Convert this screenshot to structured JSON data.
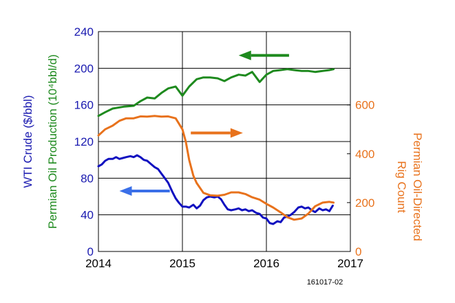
{
  "chart_data": {
    "type": "line",
    "x_range": [
      2014,
      2017
    ],
    "x_ticks": [
      "2014",
      "2015",
      "2016",
      "2017"
    ],
    "left_axis": {
      "range": [
        0,
        240
      ],
      "ticks": [
        "0",
        "40",
        "80",
        "120",
        "160",
        "200",
        "240"
      ],
      "tick_color": "#1a1ab0",
      "labels": [
        {
          "text": "WTI Crude ($/bbl)",
          "color": "#1a1ab0"
        },
        {
          "text": "Permian Oil Production (10⁴bbl/d)",
          "color": "#1e8a1e"
        }
      ]
    },
    "right_axis": {
      "range": [
        0,
        900
      ],
      "ticks": [
        "0",
        "200",
        "400",
        "600"
      ],
      "tick_color": "#e8721c",
      "label_lines": [
        "Permian Oil-Directed",
        "Rig Count"
      ],
      "color": "#e8721c"
    },
    "series": [
      {
        "axis": "left",
        "color": "#1e8a1e",
        "points": [
          [
            2014.0,
            148
          ],
          [
            2014.08,
            152
          ],
          [
            2014.17,
            156
          ],
          [
            2014.3,
            158
          ],
          [
            2014.42,
            159
          ],
          [
            2014.5,
            164
          ],
          [
            2014.58,
            168
          ],
          [
            2014.67,
            167
          ],
          [
            2014.75,
            173
          ],
          [
            2014.83,
            178
          ],
          [
            2014.92,
            180
          ],
          [
            2015.0,
            170
          ],
          [
            2015.08,
            180
          ],
          [
            2015.17,
            188
          ],
          [
            2015.25,
            190
          ],
          [
            2015.33,
            190
          ],
          [
            2015.42,
            189
          ],
          [
            2015.5,
            186
          ],
          [
            2015.58,
            190
          ],
          [
            2015.67,
            193
          ],
          [
            2015.75,
            192
          ],
          [
            2015.83,
            196
          ],
          [
            2015.92,
            185
          ],
          [
            2016.0,
            193
          ],
          [
            2016.08,
            197
          ],
          [
            2016.17,
            198
          ],
          [
            2016.25,
            199
          ],
          [
            2016.33,
            198
          ],
          [
            2016.42,
            197
          ],
          [
            2016.5,
            197
          ],
          [
            2016.58,
            196
          ],
          [
            2016.67,
            197
          ],
          [
            2016.75,
            198
          ],
          [
            2016.8,
            199
          ]
        ]
      },
      {
        "axis": "left",
        "color": "#1010c0",
        "points": [
          [
            2014.0,
            93
          ],
          [
            2014.04,
            95
          ],
          [
            2014.08,
            99
          ],
          [
            2014.12,
            101
          ],
          [
            2014.17,
            101
          ],
          [
            2014.21,
            103
          ],
          [
            2014.25,
            101
          ],
          [
            2014.29,
            102
          ],
          [
            2014.33,
            103
          ],
          [
            2014.38,
            104
          ],
          [
            2014.42,
            103
          ],
          [
            2014.46,
            105
          ],
          [
            2014.5,
            103
          ],
          [
            2014.54,
            100
          ],
          [
            2014.58,
            99
          ],
          [
            2014.63,
            95
          ],
          [
            2014.67,
            92
          ],
          [
            2014.71,
            90
          ],
          [
            2014.75,
            85
          ],
          [
            2014.79,
            80
          ],
          [
            2014.83,
            75
          ],
          [
            2014.88,
            65
          ],
          [
            2014.92,
            58
          ],
          [
            2014.96,
            53
          ],
          [
            2015.0,
            49
          ],
          [
            2015.04,
            49
          ],
          [
            2015.08,
            48
          ],
          [
            2015.13,
            51
          ],
          [
            2015.17,
            47
          ],
          [
            2015.21,
            50
          ],
          [
            2015.25,
            56
          ],
          [
            2015.29,
            59
          ],
          [
            2015.33,
            60
          ],
          [
            2015.38,
            59
          ],
          [
            2015.42,
            60
          ],
          [
            2015.46,
            57
          ],
          [
            2015.5,
            51
          ],
          [
            2015.54,
            46
          ],
          [
            2015.58,
            45
          ],
          [
            2015.63,
            46
          ],
          [
            2015.67,
            47
          ],
          [
            2015.71,
            45
          ],
          [
            2015.75,
            46
          ],
          [
            2015.79,
            44
          ],
          [
            2015.83,
            45
          ],
          [
            2015.88,
            42
          ],
          [
            2015.92,
            41
          ],
          [
            2015.96,
            37
          ],
          [
            2016.0,
            36
          ],
          [
            2016.04,
            31
          ],
          [
            2016.08,
            30
          ],
          [
            2016.13,
            33
          ],
          [
            2016.17,
            32
          ],
          [
            2016.21,
            37
          ],
          [
            2016.25,
            38
          ],
          [
            2016.29,
            40
          ],
          [
            2016.33,
            43
          ],
          [
            2016.38,
            48
          ],
          [
            2016.42,
            49
          ],
          [
            2016.46,
            47
          ],
          [
            2016.5,
            48
          ],
          [
            2016.54,
            45
          ],
          [
            2016.58,
            43
          ],
          [
            2016.63,
            47
          ],
          [
            2016.67,
            45
          ],
          [
            2016.71,
            46
          ],
          [
            2016.75,
            44
          ],
          [
            2016.79,
            50
          ]
        ]
      },
      {
        "axis": "right",
        "color": "#e8721c",
        "points": [
          [
            2014.0,
            475
          ],
          [
            2014.08,
            500
          ],
          [
            2014.17,
            515
          ],
          [
            2014.25,
            535
          ],
          [
            2014.33,
            545
          ],
          [
            2014.42,
            545
          ],
          [
            2014.5,
            553
          ],
          [
            2014.58,
            552
          ],
          [
            2014.67,
            555
          ],
          [
            2014.75,
            552
          ],
          [
            2014.83,
            553
          ],
          [
            2014.92,
            545
          ],
          [
            2015.0,
            500
          ],
          [
            2015.04,
            450
          ],
          [
            2015.08,
            375
          ],
          [
            2015.13,
            310
          ],
          [
            2015.17,
            280
          ],
          [
            2015.25,
            240
          ],
          [
            2015.33,
            230
          ],
          [
            2015.42,
            228
          ],
          [
            2015.5,
            232
          ],
          [
            2015.58,
            242
          ],
          [
            2015.67,
            242
          ],
          [
            2015.75,
            235
          ],
          [
            2015.83,
            222
          ],
          [
            2015.92,
            212
          ],
          [
            2016.0,
            195
          ],
          [
            2016.08,
            180
          ],
          [
            2016.17,
            160
          ],
          [
            2016.25,
            140
          ],
          [
            2016.33,
            130
          ],
          [
            2016.42,
            135
          ],
          [
            2016.5,
            155
          ],
          [
            2016.58,
            185
          ],
          [
            2016.67,
            200
          ],
          [
            2016.75,
            203
          ],
          [
            2016.8,
            200
          ]
        ]
      }
    ],
    "arrows": [
      {
        "color": "#1e8a1e",
        "direction": "left",
        "x_from": 2016.27,
        "x_to": 2015.67,
        "y": 214,
        "axis": "left"
      },
      {
        "color": "#e8721c",
        "direction": "right",
        "x_from": 2015.1,
        "x_to": 2015.72,
        "y": 485,
        "axis": "right"
      },
      {
        "color": "#3a6fe8",
        "direction": "left",
        "x_from": 2014.85,
        "x_to": 2014.25,
        "y": 66,
        "axis": "left"
      }
    ],
    "footnote": "161017-02"
  }
}
